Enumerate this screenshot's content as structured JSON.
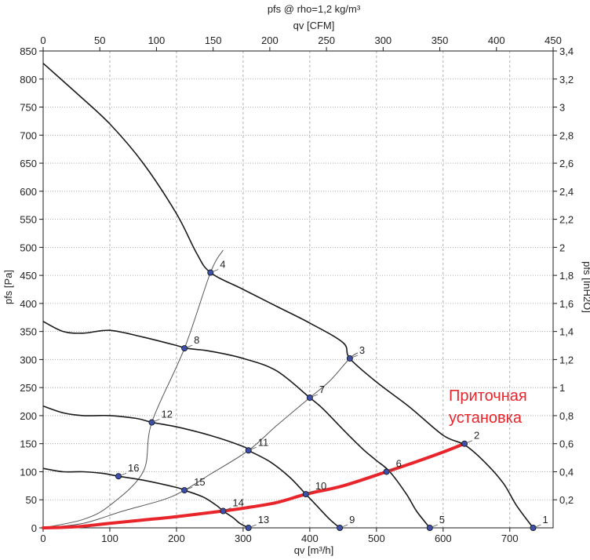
{
  "chart_data": {
    "type": "line",
    "title": "pfs @ rho=1,2 kg/m³",
    "xlabel": "qv [m³/h]",
    "x2label": "qv [CFM]",
    "ylabel": "pfs [Pa]",
    "y2label": "pfs [InH2O]",
    "xlim": [
      0,
      765
    ],
    "ylim": [
      0,
      850
    ],
    "x2lim": [
      0,
      450
    ],
    "y2lim": [
      0,
      3.4
    ],
    "grid": true,
    "xticks": [
      0,
      100,
      200,
      300,
      400,
      500,
      600,
      700
    ],
    "xtick_labels": [
      "0",
      "100",
      "200",
      "300",
      "400",
      "500",
      "600",
      "700"
    ],
    "yticks": [
      0,
      50,
      100,
      150,
      200,
      250,
      300,
      350,
      400,
      450,
      500,
      550,
      600,
      650,
      700,
      750,
      800,
      850
    ],
    "ytick_labels": [
      "0",
      "50",
      "100",
      "150",
      "200",
      "250",
      "300",
      "350",
      "400",
      "450",
      "500",
      "550",
      "600",
      "650",
      "700",
      "750",
      "800",
      "850"
    ],
    "x2ticks": [
      0,
      50,
      100,
      150,
      200,
      250,
      300,
      350,
      400,
      450
    ],
    "x2tick_labels": [
      "0",
      "50",
      "100",
      "150",
      "200",
      "250",
      "300",
      "350",
      "400",
      "450"
    ],
    "y2ticks": [
      0.2,
      0.4,
      0.6,
      0.8,
      1,
      1.2,
      1.4,
      1.6,
      1.8,
      2,
      2.2,
      2.4,
      2.6,
      2.8,
      3,
      3.2,
      3.4
    ],
    "y2tick_labels": [
      "0,2",
      "0,4",
      "0,6",
      "0,8",
      "1",
      "1,2",
      "1,4",
      "1,6",
      "1,8",
      "2",
      "2,2",
      "2,4",
      "2,6",
      "2,8",
      "3",
      "3,2",
      "3,4"
    ],
    "fan_curves": [
      {
        "points": [
          [
            0,
            828
          ],
          [
            50,
            775
          ],
          [
            100,
            720
          ],
          [
            150,
            650
          ],
          [
            200,
            560
          ],
          [
            230,
            490
          ],
          [
            251,
            455
          ],
          [
            300,
            425
          ],
          [
            350,
            395
          ],
          [
            400,
            365
          ],
          [
            450,
            330
          ],
          [
            460,
            302
          ],
          [
            500,
            260
          ],
          [
            550,
            215
          ],
          [
            600,
            165
          ],
          [
            632,
            148
          ],
          [
            660,
            120
          ],
          [
            690,
            80
          ],
          [
            710,
            40
          ],
          [
            735,
            0
          ]
        ]
      },
      {
        "points": [
          [
            0,
            368
          ],
          [
            30,
            350
          ],
          [
            60,
            347
          ],
          [
            100,
            352
          ],
          [
            150,
            340
          ],
          [
            200,
            325
          ],
          [
            215,
            320
          ],
          [
            250,
            315
          ],
          [
            300,
            302
          ],
          [
            350,
            280
          ],
          [
            400,
            232
          ],
          [
            420,
            212
          ],
          [
            450,
            175
          ],
          [
            480,
            140
          ],
          [
            500,
            120
          ],
          [
            520,
            100
          ],
          [
            545,
            60
          ],
          [
            560,
            30
          ],
          [
            580,
            0
          ]
        ]
      },
      {
        "points": [
          [
            0,
            217
          ],
          [
            30,
            205
          ],
          [
            60,
            200
          ],
          [
            100,
            200
          ],
          [
            140,
            195
          ],
          [
            163,
            188
          ],
          [
            200,
            180
          ],
          [
            250,
            165
          ],
          [
            300,
            145
          ],
          [
            308,
            138
          ],
          [
            340,
            118
          ],
          [
            370,
            90
          ],
          [
            394,
            60
          ],
          [
            410,
            40
          ],
          [
            430,
            15
          ],
          [
            445,
            0
          ]
        ]
      },
      {
        "points": [
          [
            0,
            106
          ],
          [
            30,
            100
          ],
          [
            60,
            100
          ],
          [
            90,
            97
          ],
          [
            113,
            92
          ],
          [
            150,
            85
          ],
          [
            200,
            72
          ],
          [
            212,
            67
          ],
          [
            240,
            55
          ],
          [
            260,
            40
          ],
          [
            270,
            30
          ],
          [
            285,
            18
          ],
          [
            295,
            8
          ],
          [
            308,
            0
          ]
        ]
      }
    ],
    "system_curves": [
      {
        "points": [
          [
            0,
            0
          ],
          [
            60,
            15
          ],
          [
            100,
            40
          ],
          [
            150,
            100
          ],
          [
            163,
            188
          ],
          [
            212,
            320
          ],
          [
            251,
            455
          ],
          [
            270,
            495
          ]
        ]
      },
      {
        "points": [
          [
            0,
            0
          ],
          [
            60,
            8
          ],
          [
            120,
            30
          ],
          [
            180,
            50
          ],
          [
            212,
            67
          ],
          [
            250,
            95
          ],
          [
            308,
            138
          ],
          [
            350,
            182
          ],
          [
            400,
            232
          ],
          [
            430,
            262
          ],
          [
            460,
            302
          ],
          [
            472,
            312
          ]
        ]
      }
    ],
    "installation_curve": {
      "points": [
        [
          0,
          0
        ],
        [
          50,
          2
        ],
        [
          100,
          8
        ],
        [
          150,
          14
        ],
        [
          200,
          20
        ],
        [
          270,
          30
        ],
        [
          300,
          35
        ],
        [
          350,
          45
        ],
        [
          394,
          60
        ],
        [
          450,
          75
        ],
        [
          515,
          100
        ],
        [
          560,
          118
        ],
        [
          600,
          135
        ],
        [
          632,
          150
        ]
      ]
    },
    "markers": [
      {
        "label": "1",
        "x": 735,
        "y": 0
      },
      {
        "label": "2",
        "x": 632,
        "y": 150
      },
      {
        "label": "3",
        "x": 460,
        "y": 302
      },
      {
        "label": "4",
        "x": 251,
        "y": 455
      },
      {
        "label": "5",
        "x": 580,
        "y": 0
      },
      {
        "label": "6",
        "x": 515,
        "y": 100
      },
      {
        "label": "7",
        "x": 400,
        "y": 232
      },
      {
        "label": "8",
        "x": 212,
        "y": 320
      },
      {
        "label": "9",
        "x": 445,
        "y": 0
      },
      {
        "label": "10",
        "x": 394,
        "y": 60
      },
      {
        "label": "11",
        "x": 308,
        "y": 138
      },
      {
        "label": "12",
        "x": 163,
        "y": 188
      },
      {
        "label": "13",
        "x": 308,
        "y": 0
      },
      {
        "label": "14",
        "x": 270,
        "y": 30
      },
      {
        "label": "15",
        "x": 212,
        "y": 67
      },
      {
        "label": "16",
        "x": 113,
        "y": 92
      }
    ],
    "annotation": {
      "lines": [
        "Приточная",
        "установка"
      ],
      "color": "#e8252b"
    },
    "colors": {
      "curve": "#1a1a1a",
      "system": "#555555",
      "installation": "#e8252b",
      "marker_fill": "#3a4fb0",
      "grid": "#9a9a9a"
    }
  }
}
